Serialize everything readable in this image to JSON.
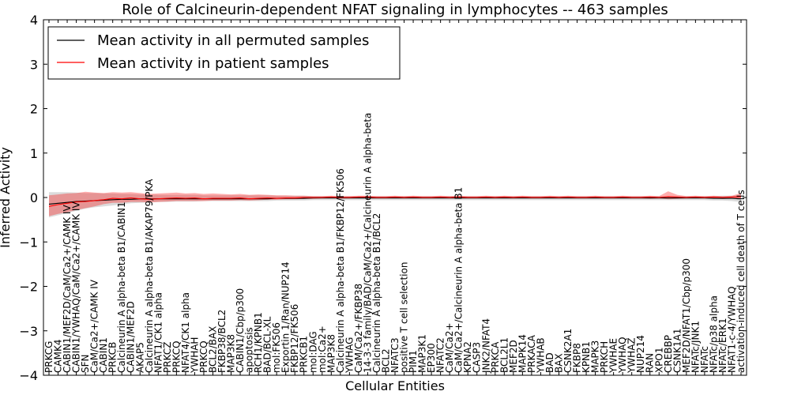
{
  "chart_data": {
    "type": "line",
    "title": "Role of Calcineurin-dependent NFAT signaling in lymphocytes -- 463 samples",
    "xlabel": "Cellular Entities",
    "ylabel": "Inferred Activity",
    "ylim": [
      -4,
      4
    ],
    "yticks": [
      -4,
      -3,
      -2,
      -1,
      0,
      1,
      2,
      3,
      4
    ],
    "ytick_labels": [
      "−4",
      "−3",
      "−2",
      "−1",
      "0",
      "1",
      "2",
      "3",
      "4"
    ],
    "legend": {
      "placement": "top-left",
      "entries": [
        {
          "label": "Mean activity in all permuted samples",
          "color": "#000000"
        },
        {
          "label": "Mean activity in patient samples",
          "color": "#ff0000"
        }
      ]
    },
    "categories": [
      "PRKCG",
      "CAMK4",
      "CABIN1/MEF2D/CaM/Ca2+/CAMK IV",
      "CABIN1/YWHAQ/CaM/Ca2+/CAMK IV",
      "SFN",
      "CaM/Ca2+/CAMK IV",
      "CABIN1",
      "PRKCB",
      "Calcineurin A alpha-beta B1/CABIN1",
      "CABIN1/MEF2D",
      "AKAP5",
      "Calcineurin A alpha-beta B1/AKAP79/PKA",
      "NFAT1/CK1 alpha",
      "PRKCZ",
      "PRKCQ",
      "NFAT4/CK1 alpha",
      "YWHAH",
      "PRKCQ",
      "BCL2/BAX",
      "FKBP38/BCL2",
      "MAP3K8",
      "CABIN1/Cbp/p300",
      "apoptosis",
      "RCH1/KPNB1",
      "BAD/BCL-XL",
      "mol:FK506",
      "Exportin 1/Ran/NUP214",
      "FKBP12/FK506",
      "PRKCB1",
      "mol:DAG",
      "mol:Ca2+",
      "MAP3K8",
      "Calcineurin A alpha-beta B1/FKBP12/FK506",
      "YWHAG",
      "CaM/Ca2+/FKBP38",
      "14-3-3 family/BAD/CaM/Ca2+/Calcineurin A alpha-beta",
      "Calcineurin A alpha-beta B1/BCL2",
      "BCL2",
      "NFATC3",
      "positive T cell selection",
      "PIM1",
      "MAP3K1",
      "EP300",
      "NFATC2",
      "CaM/Ca2+",
      "CaM/Ca2+/Calcineurin A alpha-beta B1",
      "KPNA2",
      "CASP3",
      "JNK2/NFAT4",
      "PRKCA",
      "BCL2L1",
      "MEF2D",
      "MAPK14",
      "PRKACA",
      "YWHAB",
      "BAD",
      "BAX",
      "CSNK2A1",
      "FKBP8",
      "KPNB1",
      "MAPK3",
      "PRKCH",
      "YWHAE",
      "YWHAQ",
      "YWHAZ",
      "NUP214",
      "RAN",
      "XPO1",
      "CREBBP",
      "CSNK1A1",
      "MEF2D/NFAT1/Cbp/p300",
      "NFATc/JNK1",
      "NFATc",
      "NFATc/p38 alpha",
      "NFATc/ERK1",
      "NFAT1-c-4/YWHAQ",
      "activation-induced cell death of T cells"
    ],
    "series": [
      {
        "name": "Mean activity in all permuted samples",
        "color": "#000000",
        "values": [
          -0.15,
          -0.13,
          -0.11,
          -0.09,
          -0.08,
          -0.07,
          -0.06,
          -0.05,
          -0.04,
          -0.04,
          -0.03,
          -0.03,
          -0.03,
          -0.03,
          -0.03,
          -0.03,
          -0.03,
          -0.03,
          -0.03,
          -0.03,
          -0.03,
          -0.03,
          -0.03,
          -0.03,
          -0.03,
          -0.02,
          -0.02,
          -0.02,
          -0.02,
          -0.01,
          -0.01,
          -0.01,
          -0.01,
          -0.01,
          -0.01,
          -0.01,
          -0.01,
          -0.01,
          -0.01,
          -0.01,
          -0.01,
          -0.01,
          -0.01,
          -0.01,
          -0.01,
          -0.01,
          -0.01,
          -0.01,
          -0.01,
          -0.01,
          -0.01,
          -0.01,
          -0.01,
          -0.01,
          -0.01,
          -0.01,
          -0.01,
          -0.01,
          -0.01,
          -0.01,
          -0.01,
          -0.01,
          -0.01,
          -0.01,
          -0.01,
          -0.01,
          -0.01,
          -0.01,
          -0.01,
          -0.01,
          -0.01,
          -0.01,
          -0.01,
          -0.02,
          -0.02,
          -0.02,
          -0.03
        ],
        "lower": [
          -0.45,
          -0.4,
          -0.35,
          -0.3,
          -0.25,
          -0.22,
          -0.2,
          -0.18,
          -0.15,
          -0.13,
          -0.12,
          -0.11,
          -0.1,
          -0.1,
          -0.09,
          -0.09,
          -0.09,
          -0.08,
          -0.08,
          -0.08,
          -0.08,
          -0.08,
          -0.08,
          -0.08,
          -0.08,
          -0.07,
          -0.07,
          -0.07,
          -0.07,
          -0.06,
          -0.06,
          -0.06,
          -0.06,
          -0.06,
          -0.06,
          -0.06,
          -0.06,
          -0.06,
          -0.06,
          -0.06,
          -0.06,
          -0.06,
          -0.06,
          -0.06,
          -0.06,
          -0.06,
          -0.06,
          -0.06,
          -0.06,
          -0.06,
          -0.06,
          -0.06,
          -0.06,
          -0.06,
          -0.06,
          -0.06,
          -0.06,
          -0.06,
          -0.06,
          -0.06,
          -0.06,
          -0.06,
          -0.06,
          -0.06,
          -0.06,
          -0.06,
          -0.06,
          -0.06,
          -0.06,
          -0.06,
          -0.06,
          -0.06,
          -0.06,
          -0.07,
          -0.07,
          -0.08,
          -0.1
        ],
        "upper": [
          0.12,
          0.12,
          0.12,
          0.11,
          0.1,
          0.1,
          0.09,
          0.09,
          0.08,
          0.08,
          0.07,
          0.07,
          0.06,
          0.06,
          0.06,
          0.06,
          0.06,
          0.05,
          0.05,
          0.05,
          0.05,
          0.05,
          0.05,
          0.05,
          0.05,
          0.04,
          0.04,
          0.04,
          0.04,
          0.03,
          0.03,
          0.03,
          0.03,
          0.03,
          0.03,
          0.03,
          0.03,
          0.03,
          0.03,
          0.03,
          0.03,
          0.03,
          0.03,
          0.03,
          0.03,
          0.03,
          0.03,
          0.03,
          0.03,
          0.03,
          0.03,
          0.03,
          0.03,
          0.03,
          0.03,
          0.03,
          0.03,
          0.03,
          0.03,
          0.03,
          0.03,
          0.03,
          0.03,
          0.03,
          0.03,
          0.03,
          0.03,
          0.03,
          0.03,
          0.03,
          0.03,
          0.03,
          0.03,
          0.03,
          0.04,
          0.04,
          0.05
        ]
      },
      {
        "name": "Mean activity in patient samples",
        "color": "#ff0000",
        "values": [
          -0.2,
          -0.16,
          -0.13,
          -0.1,
          -0.09,
          -0.07,
          -0.05,
          -0.02,
          -0.03,
          -0.01,
          -0.03,
          -0.04,
          -0.03,
          -0.02,
          -0.01,
          -0.02,
          -0.01,
          -0.03,
          -0.02,
          -0.02,
          -0.02,
          -0.01,
          -0.03,
          -0.02,
          -0.01,
          -0.02,
          -0.01,
          -0.01,
          0.0,
          0.0,
          0.0,
          0.01,
          0.0,
          0.0,
          0.01,
          0.01,
          0.0,
          0.0,
          0.01,
          0.0,
          0.01,
          0.0,
          0.0,
          0.01,
          0.0,
          0.01,
          0.0,
          0.0,
          0.01,
          0.0,
          0.01,
          0.0,
          0.01,
          0.0,
          0.0,
          0.01,
          0.0,
          0.01,
          0.0,
          0.0,
          0.01,
          0.0,
          0.0,
          0.01,
          0.0,
          0.0,
          0.01,
          0.0,
          0.02,
          0.01,
          0.0,
          0.01,
          0.0,
          0.01,
          0.0,
          0.01,
          0.02
        ],
        "lower": [
          -0.42,
          -0.37,
          -0.33,
          -0.28,
          -0.24,
          -0.2,
          -0.15,
          -0.12,
          -0.12,
          -0.1,
          -0.1,
          -0.11,
          -0.1,
          -0.09,
          -0.08,
          -0.08,
          -0.08,
          -0.08,
          -0.07,
          -0.07,
          -0.07,
          -0.06,
          -0.07,
          -0.06,
          -0.05,
          -0.05,
          -0.04,
          -0.04,
          -0.03,
          -0.03,
          -0.02,
          -0.02,
          -0.02,
          -0.02,
          -0.02,
          -0.02,
          -0.02,
          -0.02,
          -0.02,
          -0.02,
          -0.02,
          -0.02,
          -0.02,
          -0.02,
          -0.02,
          -0.02,
          -0.02,
          -0.02,
          -0.02,
          -0.02,
          -0.02,
          -0.02,
          -0.02,
          -0.02,
          -0.02,
          -0.02,
          -0.02,
          -0.02,
          -0.02,
          -0.02,
          -0.02,
          -0.02,
          -0.02,
          -0.02,
          -0.02,
          -0.02,
          -0.03,
          -0.02,
          -0.04,
          -0.03,
          -0.02,
          -0.02,
          -0.02,
          -0.02,
          -0.03,
          -0.02,
          -0.04
        ],
        "upper": [
          0.05,
          0.07,
          0.09,
          0.1,
          0.13,
          0.11,
          0.1,
          0.12,
          0.11,
          0.12,
          0.1,
          0.08,
          0.09,
          0.1,
          0.11,
          0.09,
          0.1,
          0.08,
          0.09,
          0.08,
          0.07,
          0.08,
          0.06,
          0.07,
          0.06,
          0.05,
          0.05,
          0.04,
          0.04,
          0.03,
          0.03,
          0.04,
          0.03,
          0.03,
          0.04,
          0.04,
          0.03,
          0.03,
          0.04,
          0.03,
          0.04,
          0.03,
          0.03,
          0.04,
          0.03,
          0.04,
          0.03,
          0.03,
          0.04,
          0.03,
          0.04,
          0.03,
          0.04,
          0.03,
          0.03,
          0.04,
          0.03,
          0.04,
          0.03,
          0.03,
          0.04,
          0.03,
          0.03,
          0.04,
          0.03,
          0.03,
          0.04,
          0.03,
          0.14,
          0.06,
          0.03,
          0.04,
          0.03,
          0.04,
          0.03,
          0.04,
          0.1
        ]
      }
    ],
    "band_colors": {
      "permuted": "#bdbdbd",
      "patient": "#ff0000"
    },
    "grid": false
  }
}
